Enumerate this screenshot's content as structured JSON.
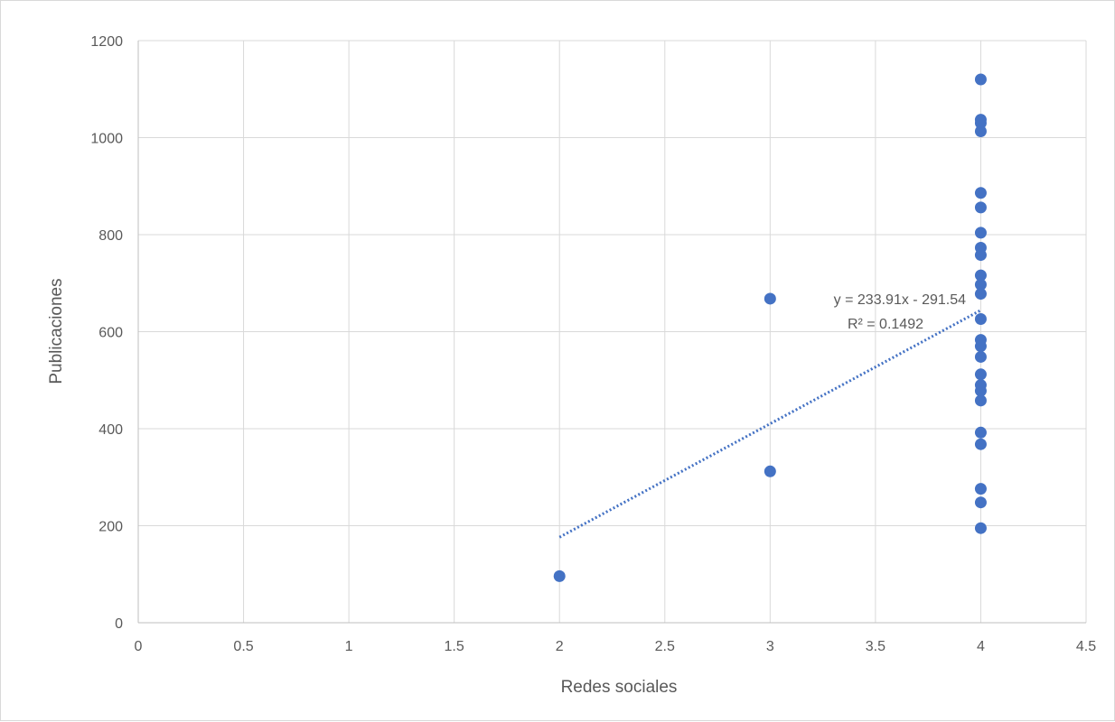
{
  "chart_data": {
    "type": "scatter",
    "title": "",
    "xlabel": "Redes sociales",
    "ylabel": "Publicaciones",
    "xlim": [
      0,
      4.5
    ],
    "ylim": [
      0,
      1200
    ],
    "x_ticks": [
      "0",
      "0.5",
      "1",
      "1.5",
      "2",
      "2.5",
      "3",
      "3.5",
      "4",
      "4.5"
    ],
    "y_ticks": [
      "0",
      "200",
      "400",
      "600",
      "800",
      "1000",
      "1200"
    ],
    "grid": "major x and y",
    "legend": "none",
    "series": [
      {
        "color": "#4472c4",
        "points": [
          {
            "x": 2,
            "y": 96
          },
          {
            "x": 3,
            "y": 312
          },
          {
            "x": 3,
            "y": 668
          },
          {
            "x": 4,
            "y": 195
          },
          {
            "x": 4,
            "y": 248
          },
          {
            "x": 4,
            "y": 276
          },
          {
            "x": 4,
            "y": 368
          },
          {
            "x": 4,
            "y": 392
          },
          {
            "x": 4,
            "y": 458
          },
          {
            "x": 4,
            "y": 478
          },
          {
            "x": 4,
            "y": 490
          },
          {
            "x": 4,
            "y": 512
          },
          {
            "x": 4,
            "y": 548
          },
          {
            "x": 4,
            "y": 570
          },
          {
            "x": 4,
            "y": 583
          },
          {
            "x": 4,
            "y": 626
          },
          {
            "x": 4,
            "y": 678
          },
          {
            "x": 4,
            "y": 697
          },
          {
            "x": 4,
            "y": 716
          },
          {
            "x": 4,
            "y": 758
          },
          {
            "x": 4,
            "y": 773
          },
          {
            "x": 4,
            "y": 804
          },
          {
            "x": 4,
            "y": 856
          },
          {
            "x": 4,
            "y": 886
          },
          {
            "x": 4,
            "y": 1013
          },
          {
            "x": 4,
            "y": 1030
          },
          {
            "x": 4,
            "y": 1037
          },
          {
            "x": 4,
            "y": 1120
          }
        ]
      }
    ],
    "trendline": {
      "type": "linear",
      "style": "dotted",
      "color": "#4472c4",
      "slope": 233.91,
      "intercept": -291.54,
      "x_range": [
        2,
        4
      ],
      "equation": "y = 233.91x - 291.54",
      "r_squared": "R² = 0.1492"
    }
  }
}
